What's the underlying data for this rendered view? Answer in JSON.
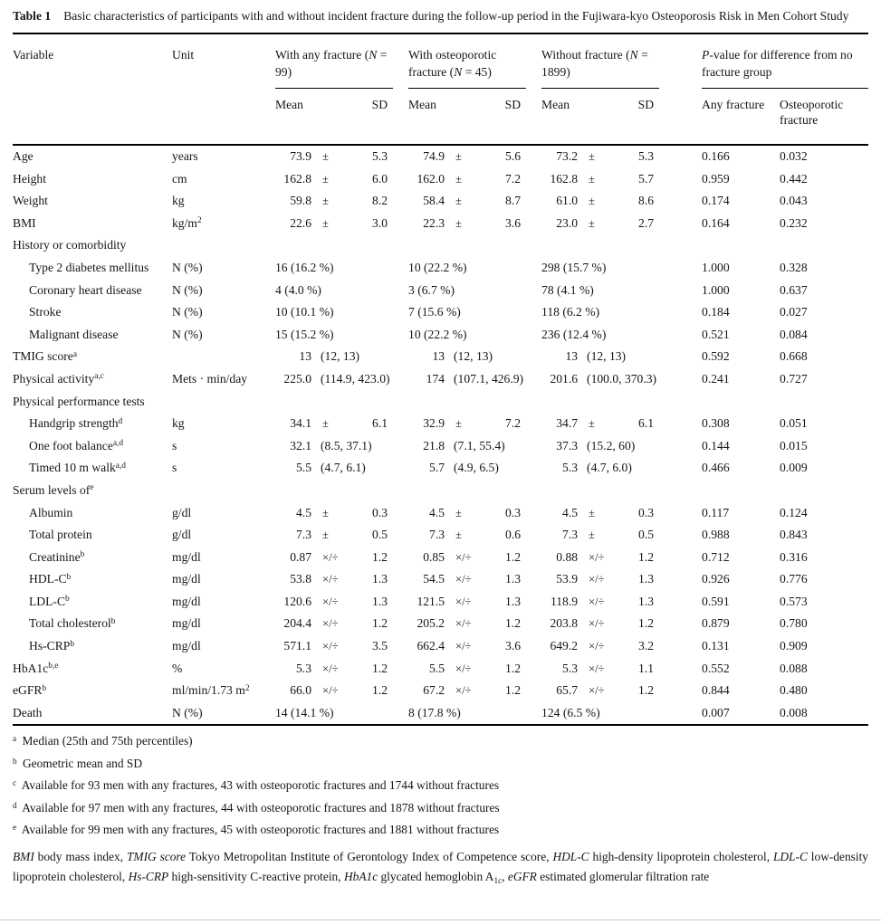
{
  "title": {
    "label": "Table 1",
    "text": "Basic characteristics of participants with and without incident fracture during the follow-up period in the Fujiwara-kyo Osteoporosis Risk in Men Cohort Study"
  },
  "header": {
    "variable": "Variable",
    "unit": "Unit",
    "groups": [
      {
        "segments": [
          {
            "t": "With any fracture ("
          },
          {
            "t": "N",
            "s": "i"
          },
          {
            "t": " = 99)"
          }
        ],
        "sub": [
          "Mean",
          "SD"
        ]
      },
      {
        "segments": [
          {
            "t": "With osteoporotic fracture ("
          },
          {
            "t": "N",
            "s": "i"
          },
          {
            "t": " = 45)"
          }
        ],
        "sub": [
          "Mean",
          "SD"
        ]
      },
      {
        "segments": [
          {
            "t": "Without fracture ("
          },
          {
            "t": "N",
            "s": "i"
          },
          {
            "t": " = 1899)"
          }
        ],
        "sub": [
          "Mean",
          "SD"
        ]
      }
    ],
    "pgroup": {
      "segments": [
        {
          "t": "P",
          "s": "i"
        },
        {
          "t": "-value for difference from no fracture group"
        }
      ],
      "sub": [
        "Any fracture",
        "Osteoporotic fracture"
      ]
    }
  },
  "rows": [
    {
      "name": "age",
      "indent": 0,
      "type": "pm",
      "label": [
        {
          "t": "Age"
        }
      ],
      "unit": [
        {
          "t": "years"
        }
      ],
      "g": [
        [
          "73.9",
          "±",
          "5.3"
        ],
        [
          "74.9",
          "±",
          "5.6"
        ],
        [
          "73.2",
          "±",
          "5.3"
        ]
      ],
      "p": [
        "0.166",
        "0.032"
      ]
    },
    {
      "name": "height",
      "indent": 0,
      "type": "pm",
      "label": [
        {
          "t": "Height"
        }
      ],
      "unit": [
        {
          "t": "cm"
        }
      ],
      "g": [
        [
          "162.8",
          "±",
          "6.0"
        ],
        [
          "162.0",
          "±",
          "7.2"
        ],
        [
          "162.8",
          "±",
          "5.7"
        ]
      ],
      "p": [
        "0.959",
        "0.442"
      ]
    },
    {
      "name": "weight",
      "indent": 0,
      "type": "pm",
      "label": [
        {
          "t": "Weight"
        }
      ],
      "unit": [
        {
          "t": "kg"
        }
      ],
      "g": [
        [
          "59.8",
          "±",
          "8.2"
        ],
        [
          "58.4",
          "±",
          "8.7"
        ],
        [
          "61.0",
          "±",
          "8.6"
        ]
      ],
      "p": [
        "0.174",
        "0.043"
      ]
    },
    {
      "name": "bmi",
      "indent": 0,
      "type": "pm",
      "label": [
        {
          "t": "BMI"
        }
      ],
      "unit": [
        {
          "t": "kg/m"
        },
        {
          "t": "2",
          "s": "sup"
        }
      ],
      "g": [
        [
          "22.6",
          "±",
          "3.0"
        ],
        [
          "22.3",
          "±",
          "3.6"
        ],
        [
          "23.0",
          "±",
          "2.7"
        ]
      ],
      "p": [
        "0.164",
        "0.232"
      ]
    },
    {
      "name": "history-or-comorbidity",
      "type": "section",
      "label": [
        {
          "t": "History or comorbidity"
        }
      ]
    },
    {
      "name": "type-2-diabetes-mellitus",
      "indent": 1,
      "type": "count",
      "label": [
        {
          "t": "Type 2 diabetes mellitus"
        }
      ],
      "unit": [
        {
          "t": "N (%)"
        }
      ],
      "g": [
        "16 (16.2 %)",
        "10 (22.2 %)",
        "298 (15.7 %)"
      ],
      "p": [
        "1.000",
        "0.328"
      ]
    },
    {
      "name": "coronary-heart-disease",
      "indent": 1,
      "type": "count",
      "label": [
        {
          "t": "Coronary heart disease"
        }
      ],
      "unit": [
        {
          "t": "N (%)"
        }
      ],
      "g": [
        "4 (4.0 %)",
        "3 (6.7 %)",
        "78 (4.1 %)"
      ],
      "p": [
        "1.000",
        "0.637"
      ]
    },
    {
      "name": "stroke",
      "indent": 1,
      "type": "count",
      "label": [
        {
          "t": "Stroke"
        }
      ],
      "unit": [
        {
          "t": "N (%)"
        }
      ],
      "g": [
        "10 (10.1 %)",
        "7 (15.6 %)",
        "118 (6.2 %)"
      ],
      "p": [
        "0.184",
        "0.027"
      ]
    },
    {
      "name": "malignant-disease",
      "indent": 1,
      "type": "count",
      "label": [
        {
          "t": "Malignant disease"
        }
      ],
      "unit": [
        {
          "t": "N (%)"
        }
      ],
      "g": [
        "15 (15.2 %)",
        "10 (22.2 %)",
        "236 (12.4 %)"
      ],
      "p": [
        "0.521",
        "0.084"
      ]
    },
    {
      "name": "tmig-score",
      "indent": 0,
      "type": "median",
      "label": [
        {
          "t": "TMIG score"
        },
        {
          "t": "a",
          "s": "sup"
        }
      ],
      "unit": [],
      "g": [
        [
          "13",
          "(12, 13)"
        ],
        [
          "13",
          "(12, 13)"
        ],
        [
          "13",
          "(12, 13)"
        ]
      ],
      "p": [
        "0.592",
        "0.668"
      ]
    },
    {
      "name": "physical-activity",
      "indent": 0,
      "type": "median",
      "label": [
        {
          "t": "Physical activity"
        },
        {
          "t": "a,c",
          "s": "sup"
        }
      ],
      "unit": [
        {
          "t": "Mets · min/day"
        }
      ],
      "g": [
        [
          "225.0",
          "(114.9, 423.0)"
        ],
        [
          "174",
          "(107.1, 426.9)"
        ],
        [
          "201.6",
          "(100.0, 370.3)"
        ]
      ],
      "p": [
        "0.241",
        "0.727"
      ]
    },
    {
      "name": "physical-performance-tests",
      "type": "section",
      "label": [
        {
          "t": "Physical performance tests"
        }
      ]
    },
    {
      "name": "handgrip-strength",
      "indent": 1,
      "type": "pm",
      "label": [
        {
          "t": "Handgrip strength"
        },
        {
          "t": "d",
          "s": "sup"
        }
      ],
      "unit": [
        {
          "t": "kg"
        }
      ],
      "g": [
        [
          "34.1",
          "±",
          "6.1"
        ],
        [
          "32.9",
          "±",
          "7.2"
        ],
        [
          "34.7",
          "±",
          "6.1"
        ]
      ],
      "p": [
        "0.308",
        "0.051"
      ]
    },
    {
      "name": "one-foot-balance",
      "indent": 1,
      "type": "median",
      "label": [
        {
          "t": "One foot balance"
        },
        {
          "t": "a,d",
          "s": "sup"
        }
      ],
      "unit": [
        {
          "t": "s"
        }
      ],
      "g": [
        [
          "32.1",
          "(8.5, 37.1)"
        ],
        [
          "21.8",
          "(7.1, 55.4)"
        ],
        [
          "37.3",
          "(15.2, 60)"
        ]
      ],
      "p": [
        "0.144",
        "0.015"
      ]
    },
    {
      "name": "timed-10-m-walk",
      "indent": 1,
      "type": "median",
      "label": [
        {
          "t": "Timed 10 m walk"
        },
        {
          "t": "a,d",
          "s": "sup"
        }
      ],
      "unit": [
        {
          "t": "s"
        }
      ],
      "g": [
        [
          "5.5",
          "(4.7, 6.1)"
        ],
        [
          "5.7",
          "(4.9, 6.5)"
        ],
        [
          "5.3",
          "(4.7, 6.0)"
        ]
      ],
      "p": [
        "0.466",
        "0.009"
      ]
    },
    {
      "name": "serum-levels-of",
      "type": "section",
      "label": [
        {
          "t": "Serum levels of"
        },
        {
          "t": "e",
          "s": "sup"
        }
      ]
    },
    {
      "name": "albumin",
      "indent": 1,
      "type": "pm",
      "label": [
        {
          "t": "Albumin"
        }
      ],
      "unit": [
        {
          "t": "g/dl"
        }
      ],
      "g": [
        [
          "4.5",
          "±",
          "0.3"
        ],
        [
          "4.5",
          "±",
          "0.3"
        ],
        [
          "4.5",
          "±",
          "0.3"
        ]
      ],
      "p": [
        "0.117",
        "0.124"
      ]
    },
    {
      "name": "total-protein",
      "indent": 1,
      "type": "pm",
      "label": [
        {
          "t": "Total protein"
        }
      ],
      "unit": [
        {
          "t": "g/dl"
        }
      ],
      "g": [
        [
          "7.3",
          "±",
          "0.5"
        ],
        [
          "7.3",
          "±",
          "0.6"
        ],
        [
          "7.3",
          "±",
          "0.5"
        ]
      ],
      "p": [
        "0.988",
        "0.843"
      ]
    },
    {
      "name": "creatinine",
      "indent": 1,
      "type": "pm",
      "label": [
        {
          "t": "Creatinine"
        },
        {
          "t": "b",
          "s": "sup"
        }
      ],
      "unit": [
        {
          "t": "mg/dl"
        }
      ],
      "g": [
        [
          "0.87",
          "×/÷",
          "1.2"
        ],
        [
          "0.85",
          "×/÷",
          "1.2"
        ],
        [
          "0.88",
          "×/÷",
          "1.2"
        ]
      ],
      "p": [
        "0.712",
        "0.316"
      ]
    },
    {
      "name": "hdl-c",
      "indent": 1,
      "type": "pm",
      "label": [
        {
          "t": "HDL-C"
        },
        {
          "t": "b",
          "s": "sup"
        }
      ],
      "unit": [
        {
          "t": "mg/dl"
        }
      ],
      "g": [
        [
          "53.8",
          "×/÷",
          "1.3"
        ],
        [
          "54.5",
          "×/÷",
          "1.3"
        ],
        [
          "53.9",
          "×/÷",
          "1.3"
        ]
      ],
      "p": [
        "0.926",
        "0.776"
      ]
    },
    {
      "name": "ldl-c",
      "indent": 1,
      "type": "pm",
      "label": [
        {
          "t": "LDL-C"
        },
        {
          "t": "b",
          "s": "sup"
        }
      ],
      "unit": [
        {
          "t": "mg/dl"
        }
      ],
      "g": [
        [
          "120.6",
          "×/÷",
          "1.3"
        ],
        [
          "121.5",
          "×/÷",
          "1.3"
        ],
        [
          "118.9",
          "×/÷",
          "1.3"
        ]
      ],
      "p": [
        "0.591",
        "0.573"
      ]
    },
    {
      "name": "total-cholesterol",
      "indent": 1,
      "type": "pm",
      "label": [
        {
          "t": "Total cholesterol"
        },
        {
          "t": "b",
          "s": "sup"
        }
      ],
      "unit": [
        {
          "t": "mg/dl"
        }
      ],
      "g": [
        [
          "204.4",
          "×/÷",
          "1.2"
        ],
        [
          "205.2",
          "×/÷",
          "1.2"
        ],
        [
          "203.8",
          "×/÷",
          "1.2"
        ]
      ],
      "p": [
        "0.879",
        "0.780"
      ]
    },
    {
      "name": "hs-crp",
      "indent": 1,
      "type": "pm",
      "label": [
        {
          "t": "Hs-CRP"
        },
        {
          "t": "b",
          "s": "sup"
        }
      ],
      "unit": [
        {
          "t": "mg/dl"
        }
      ],
      "g": [
        [
          "571.1",
          "×/÷",
          "3.5"
        ],
        [
          "662.4",
          "×/÷",
          "3.6"
        ],
        [
          "649.2",
          "×/÷",
          "3.2"
        ]
      ],
      "p": [
        "0.131",
        "0.909"
      ]
    },
    {
      "name": "hba1c",
      "indent": 0,
      "type": "pm",
      "label": [
        {
          "t": "HbA1c"
        },
        {
          "t": "b,e",
          "s": "sup"
        }
      ],
      "unit": [
        {
          "t": "%"
        }
      ],
      "g": [
        [
          "5.3",
          "×/÷",
          "1.2"
        ],
        [
          "5.5",
          "×/÷",
          "1.2"
        ],
        [
          "5.3",
          "×/÷",
          "1.1"
        ]
      ],
      "p": [
        "0.552",
        "0.088"
      ]
    },
    {
      "name": "egfr",
      "indent": 0,
      "type": "pm",
      "label": [
        {
          "t": "eGFR"
        },
        {
          "t": "b",
          "s": "sup"
        }
      ],
      "unit": [
        {
          "t": "ml/min/1.73 m"
        },
        {
          "t": "2",
          "s": "sup"
        }
      ],
      "g": [
        [
          "66.0",
          "×/÷",
          "1.2"
        ],
        [
          "67.2",
          "×/÷",
          "1.2"
        ],
        [
          "65.7",
          "×/÷",
          "1.2"
        ]
      ],
      "p": [
        "0.844",
        "0.480"
      ]
    },
    {
      "name": "death",
      "indent": 0,
      "type": "count",
      "label": [
        {
          "t": "Death"
        }
      ],
      "unit": [
        {
          "t": "N (%)"
        }
      ],
      "g": [
        "14 (14.1 %)",
        "8 (17.8 %)",
        "124 (6.5 %)"
      ],
      "p": [
        "0.007",
        "0.008"
      ]
    }
  ],
  "footnotes": [
    {
      "sup": "a",
      "text": "Median (25th and 75th percentiles)"
    },
    {
      "sup": "b",
      "text": "Geometric mean and SD"
    },
    {
      "sup": "c",
      "text": "Available for 93 men with any fractures, 43 with osteoporotic fractures and 1744 without fractures"
    },
    {
      "sup": "d",
      "text": "Available for 97 men with any fractures, 44 with osteoporotic fractures and 1878 without fractures"
    },
    {
      "sup": "e",
      "text": "Available for 99 men with any fractures, 45 with osteoporotic fractures and 1881 without fractures"
    }
  ],
  "abbrev_note": [
    {
      "t": "BMI",
      "s": "i"
    },
    {
      "t": " body mass index, "
    },
    {
      "t": "TMIG score",
      "s": "i"
    },
    {
      "t": " Tokyo Metropolitan Institute of Gerontology Index of Competence score, "
    },
    {
      "t": "HDL-C",
      "s": "i"
    },
    {
      "t": " high-density lipoprotein cholesterol, "
    },
    {
      "t": "LDL-C",
      "s": "i"
    },
    {
      "t": " low-density lipoprotein cholesterol, "
    },
    {
      "t": "Hs-CRP",
      "s": "i"
    },
    {
      "t": " high-sensitivity C-reactive protein, "
    },
    {
      "t": "HbA1c",
      "s": "i"
    },
    {
      "t": " glycated hemoglobin A"
    },
    {
      "t": "1c",
      "s": "sub"
    },
    {
      "t": ", "
    },
    {
      "t": "eGFR",
      "s": "i"
    },
    {
      "t": " estimated glomerular filtration rate"
    }
  ]
}
